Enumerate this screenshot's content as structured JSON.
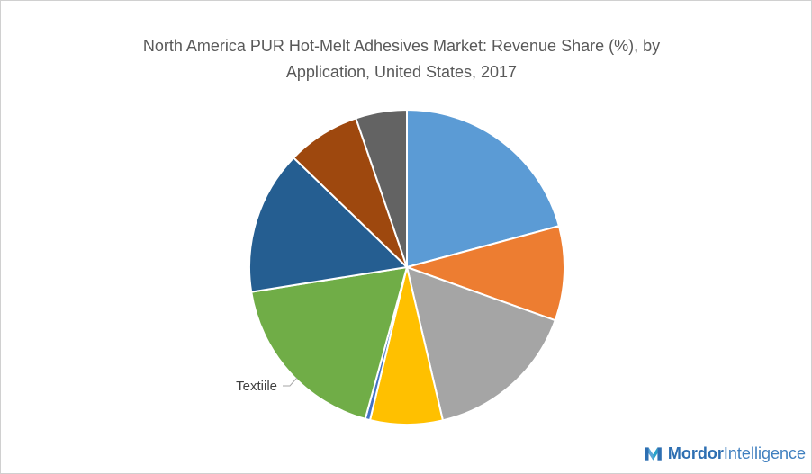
{
  "chart_data": {
    "type": "pie",
    "title_lines": [
      "North America PUR Hot-Melt Adhesives Market: Revenue Share (%), by",
      "Application, United States, 2017"
    ],
    "start_angle_deg": 0,
    "direction": "clockwise",
    "slices": [
      {
        "label": "",
        "value": 21.0,
        "color": "#5b9bd5"
      },
      {
        "label": "",
        "value": 9.8,
        "color": "#ed7d31"
      },
      {
        "label": "",
        "value": 16.0,
        "color": "#a5a5a5"
      },
      {
        "label": "",
        "value": 7.5,
        "color": "#ffc000"
      },
      {
        "label": "",
        "value": 0.5,
        "color": "#4472c4"
      },
      {
        "label": "Textiile",
        "value": 18.4,
        "color": "#70ad47"
      },
      {
        "label": "",
        "value": 14.9,
        "color": "#255e91"
      },
      {
        "label": "",
        "value": 7.6,
        "color": "#9e480e"
      },
      {
        "label": "",
        "value": 5.3,
        "color": "#636363"
      }
    ]
  },
  "branding": {
    "logo_word_1": "Mordor",
    "logo_word_2": "Intelligence",
    "logo_colors": [
      "#2e6fb2",
      "#29a3c9"
    ]
  }
}
